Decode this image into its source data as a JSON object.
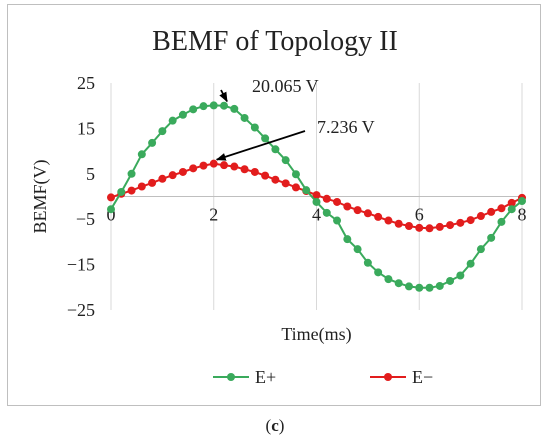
{
  "caption": {
    "open": "(",
    "letter": "c",
    "close": ")"
  },
  "chart_data": {
    "type": "line",
    "title": "BEMF of Topology II",
    "xlabel": "Time(ms)",
    "ylabel": "BEMF(V)",
    "xlim": [
      0,
      8
    ],
    "ylim": [
      -25,
      25
    ],
    "xticks": [
      "0",
      "2",
      "4",
      "6",
      "8"
    ],
    "yticks": [
      "25",
      "15",
      "5",
      "−5",
      "−15",
      "−25"
    ],
    "grid": "vertical",
    "legend": "bottom",
    "colors": {
      "E+": "#3aaa5c",
      "E-": "#e21d1d",
      "annotation": "#000000"
    },
    "series": [
      {
        "name": "E+",
        "x": [
          0,
          0.2,
          0.4,
          0.6,
          0.8,
          1.0,
          1.2,
          1.4,
          1.6,
          1.8,
          2.0,
          2.2,
          2.4,
          2.6,
          2.8,
          3.0,
          3.2,
          3.4,
          3.6,
          3.8,
          4.0,
          4.2,
          4.4,
          4.6,
          4.8,
          5.0,
          5.2,
          5.4,
          5.6,
          5.8,
          6.0,
          6.2,
          6.4,
          6.6,
          6.8,
          7.0,
          7.2,
          7.4,
          7.6,
          7.8,
          8.0
        ],
        "values": [
          -2.8,
          1.0,
          5.0,
          9.3,
          11.8,
          14.4,
          16.7,
          18.0,
          19.2,
          19.9,
          20.065,
          20.0,
          19.3,
          17.3,
          15.2,
          12.8,
          10.4,
          8.0,
          4.9,
          1.4,
          -1.2,
          -3.6,
          -5.3,
          -9.4,
          -11.6,
          -14.6,
          -16.7,
          -18.2,
          -19.1,
          -19.8,
          -20.1,
          -20.1,
          -19.7,
          -18.6,
          -17.4,
          -14.8,
          -11.6,
          -9.1,
          -5.6,
          -2.8,
          -1.0
        ]
      },
      {
        "name": "E−",
        "x": [
          0,
          0.2,
          0.4,
          0.6,
          0.8,
          1.0,
          1.2,
          1.4,
          1.6,
          1.8,
          2.0,
          2.2,
          2.4,
          2.6,
          2.8,
          3.0,
          3.2,
          3.4,
          3.6,
          3.8,
          4.0,
          4.2,
          4.4,
          4.6,
          4.8,
          5.0,
          5.2,
          5.4,
          5.6,
          5.8,
          6.0,
          6.2,
          6.4,
          6.6,
          6.8,
          7.0,
          7.2,
          7.4,
          7.6,
          7.8,
          8.0
        ],
        "values": [
          -0.2,
          0.6,
          1.3,
          2.2,
          3.0,
          3.9,
          4.7,
          5.4,
          6.2,
          6.8,
          7.236,
          6.9,
          6.6,
          6.0,
          5.4,
          4.6,
          3.7,
          2.9,
          2.0,
          1.2,
          0.3,
          -0.5,
          -1.2,
          -2.2,
          -3.0,
          -3.7,
          -4.5,
          -5.3,
          -6.0,
          -6.5,
          -6.9,
          -7.0,
          -6.7,
          -6.3,
          -5.8,
          -5.2,
          -4.3,
          -3.4,
          -2.6,
          -1.4,
          -0.3
        ]
      }
    ],
    "annotations": [
      {
        "text": "20.065 V",
        "x": 2.2,
        "y": 20.065
      },
      {
        "text": "7.236 V",
        "x": 2.0,
        "y": 7.236
      }
    ]
  }
}
